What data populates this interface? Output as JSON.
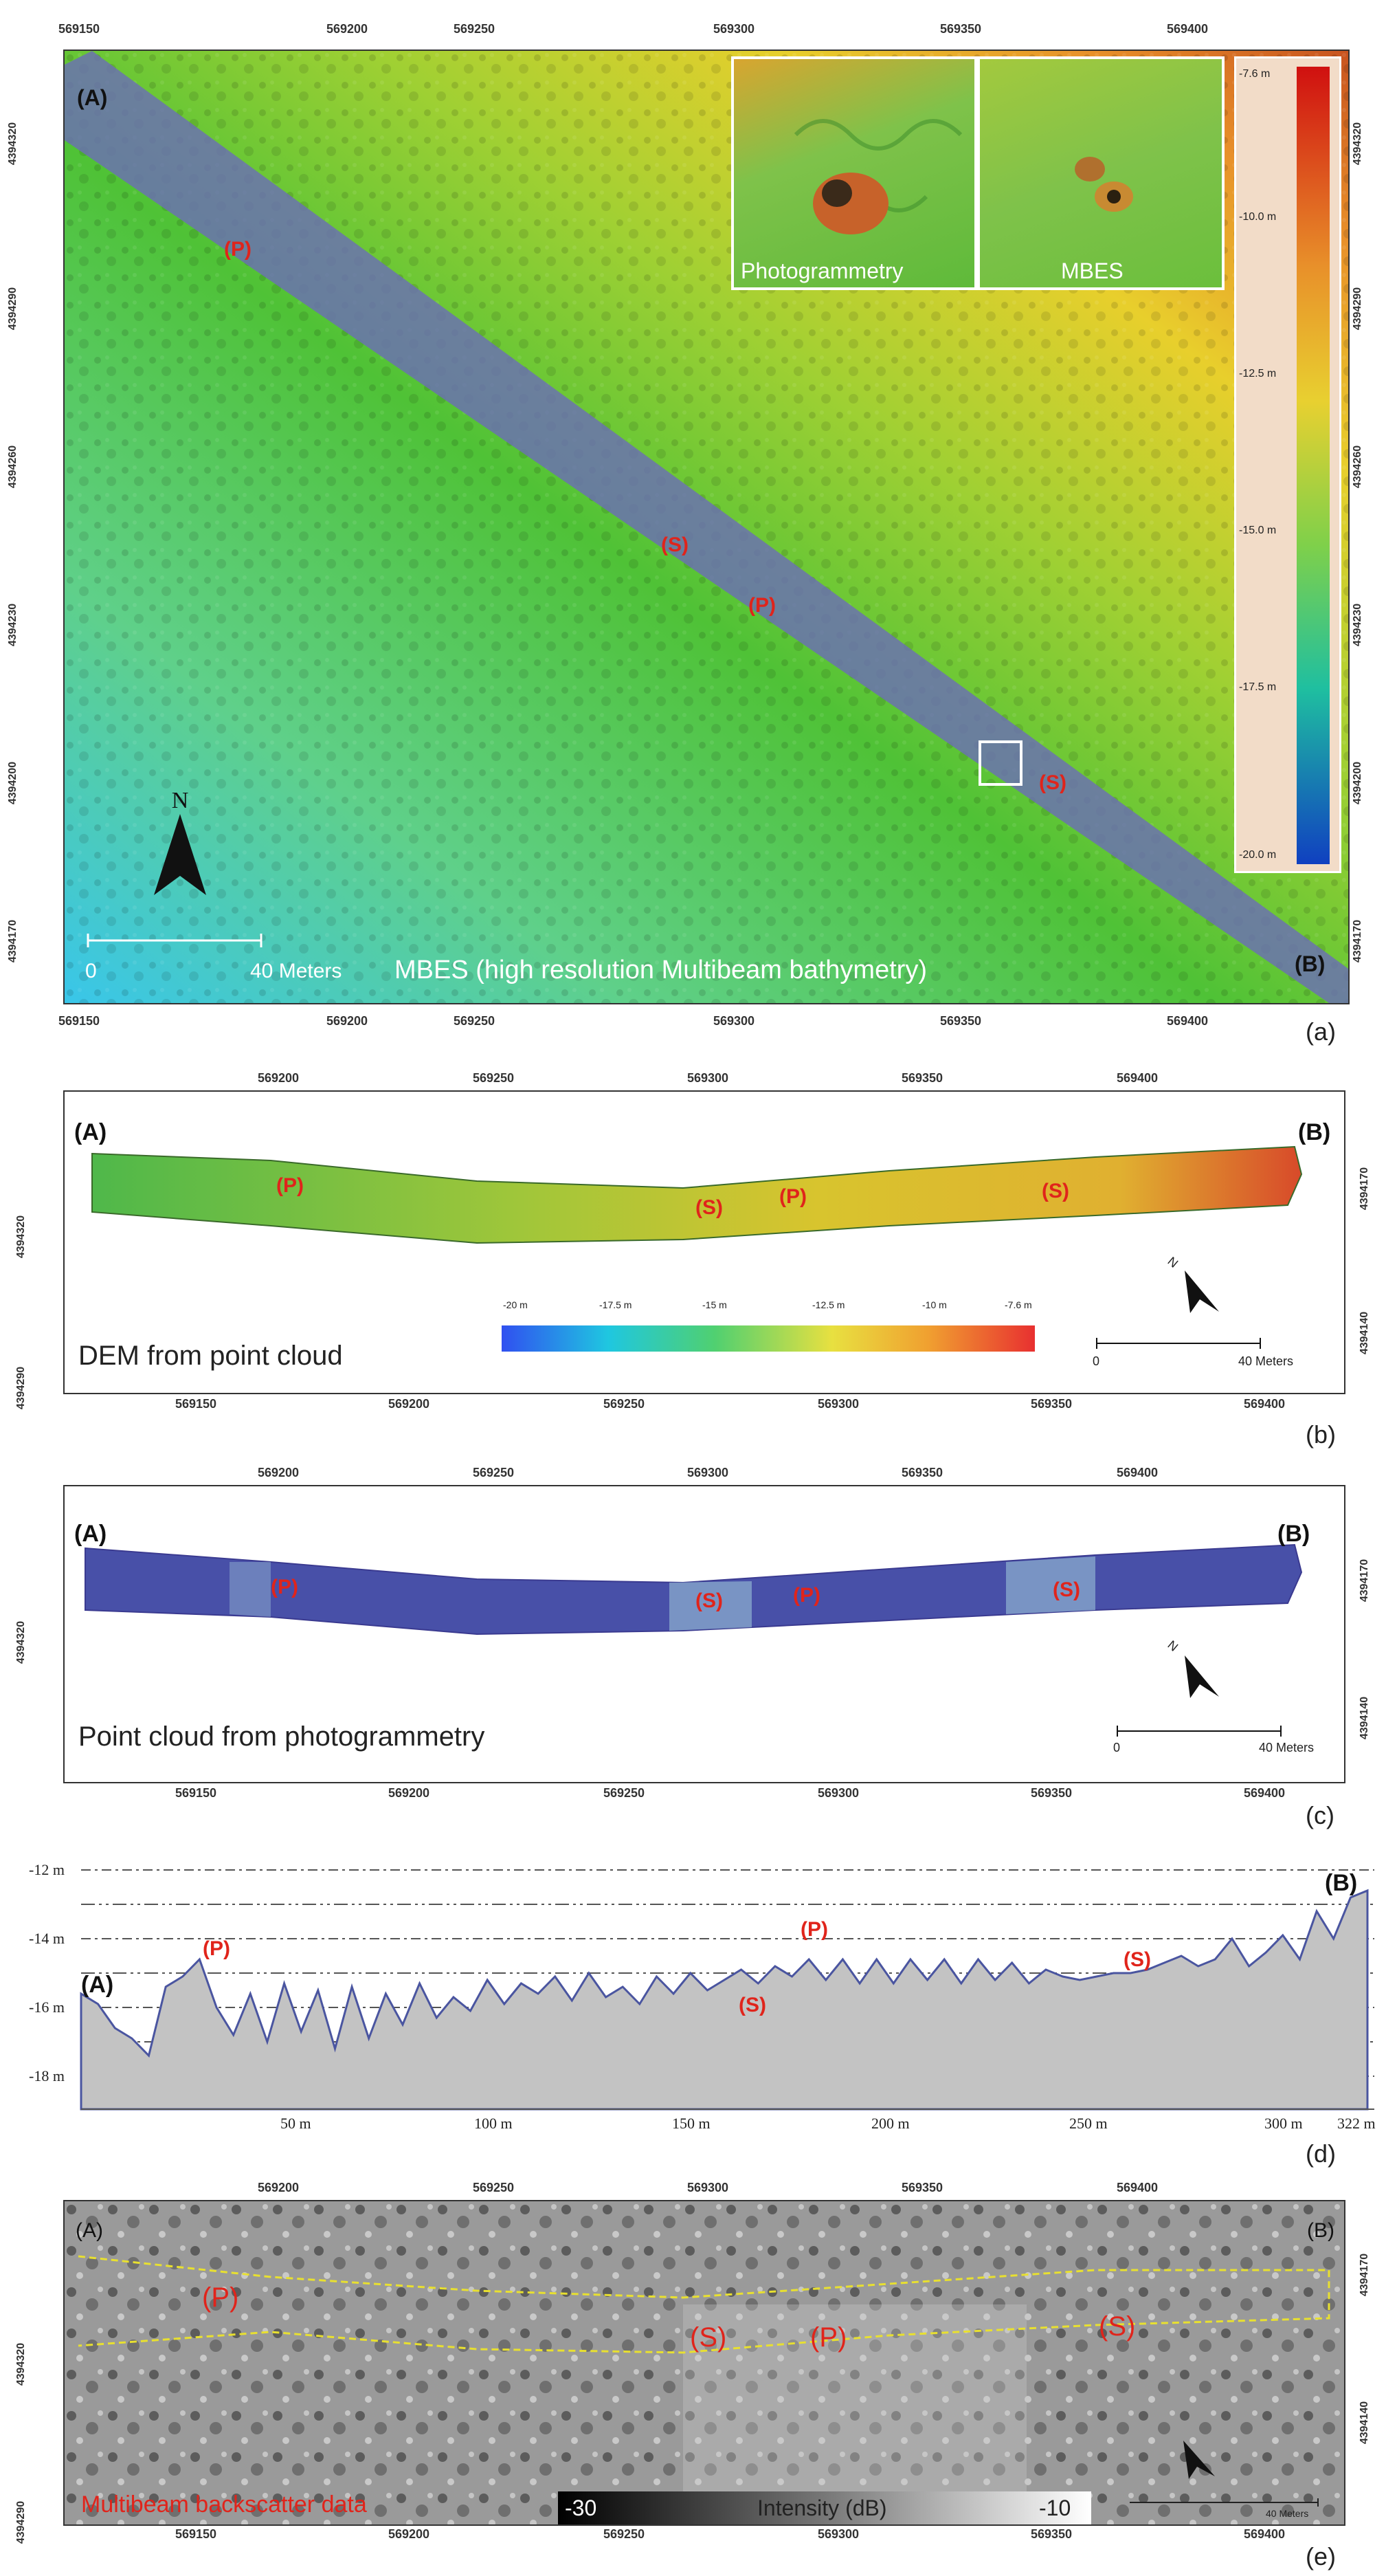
{
  "panel_a": {
    "letter": "(a)",
    "x_ticks": [
      "569150",
      "569200",
      "569250",
      "569300",
      "569350",
      "569400"
    ],
    "y_ticks": [
      "4394320",
      "4394290",
      "4394260",
      "4394230",
      "4394200",
      "4394170"
    ],
    "point_a": "(A)",
    "point_b": "(B)",
    "labels": [
      "(P)",
      "(S)",
      "(P)",
      "(S)"
    ],
    "north": "N",
    "scale_zero": "0",
    "scale_text": "40 Meters",
    "caption": "MBES (high resolution Multibeam bathymetry)",
    "inset_left": "Photogrammetry",
    "inset_right": "MBES",
    "colorbar_ticks": [
      "-7.6 m",
      "-10.0 m",
      "-12.5 m",
      "-15.0 m",
      "-17.5 m",
      "-20.0 m"
    ]
  },
  "panel_b": {
    "letter": "(b)",
    "x_ticks_top": [
      "569200",
      "569250",
      "569300",
      "569350",
      "569400"
    ],
    "x_ticks_bottom": [
      "569150",
      "569200",
      "569250",
      "569300",
      "569350",
      "569400"
    ],
    "y_ticks_right": [
      "4394170",
      "4394140"
    ],
    "y_ticks_left": [
      "4394320",
      "4394290"
    ],
    "point_a": "(A)",
    "point_b": "(B)",
    "labels": [
      "(P)",
      "(S)",
      "(P)",
      "(S)"
    ],
    "caption": "DEM from point cloud",
    "colorbar_ticks": [
      "-20 m",
      "-17.5 m",
      "-15 m",
      "-12.5 m",
      "-10 m",
      "-7.6 m"
    ],
    "north": "N",
    "scale_zero": "0",
    "scale_text": "40 Meters"
  },
  "panel_c": {
    "letter": "(c)",
    "x_ticks_top": [
      "569200",
      "569250",
      "569300",
      "569350",
      "569400"
    ],
    "x_ticks_bottom": [
      "569150",
      "569200",
      "569250",
      "569300",
      "569350",
      "569400"
    ],
    "y_ticks_right": [
      "4394170",
      "4394140"
    ],
    "y_ticks_left": [
      "4394320"
    ],
    "point_a": "(A)",
    "point_b": "(B)",
    "labels": [
      "(P)",
      "(S)",
      "(P)",
      "(S)"
    ],
    "caption": "Point cloud from photogrammetry",
    "north": "N",
    "scale_zero": "0",
    "scale_text": "40 Meters"
  },
  "panel_d": {
    "letter": "(d)",
    "y_ticks": [
      "-12 m",
      "-14 m",
      "-16 m",
      "-18 m"
    ],
    "x_ticks": [
      "50 m",
      "100 m",
      "150 m",
      "200 m",
      "250 m",
      "300 m",
      "322 m"
    ],
    "point_a": "(A)",
    "point_b": "(B)",
    "labels": [
      "(P)",
      "(S)",
      "(P)",
      "(S)"
    ],
    "profile_depths": [
      -15.6,
      -15.9,
      -16.6,
      -16.9,
      -17.4,
      -15.4,
      -15.1,
      -14.6,
      -16.0,
      -16.8,
      -15.6,
      -17.0,
      -15.3,
      -16.7,
      -15.5,
      -17.2,
      -15.4,
      -16.9,
      -15.6,
      -16.5,
      -15.3,
      -16.3,
      -15.7,
      -16.1,
      -15.2,
      -15.9,
      -15.3,
      -15.6,
      -15.1,
      -15.8,
      -15.0,
      -15.7,
      -15.4,
      -15.9,
      -15.1,
      -15.6,
      -15.0,
      -15.5,
      -15.2,
      -14.9,
      -15.3,
      -14.8,
      -15.1,
      -14.6,
      -15.2,
      -14.6,
      -15.3,
      -14.6,
      -15.3,
      -14.6,
      -15.2,
      -14.6,
      -15.3,
      -14.6,
      -15.2,
      -14.7,
      -15.3,
      -14.9,
      -15.1,
      -15.2,
      -15.1,
      -15.0,
      -15.0,
      -14.9,
      -14.7,
      -14.5,
      -14.8,
      -14.6,
      -14.0,
      -14.8,
      -14.4,
      -13.9,
      -14.6,
      -13.2,
      -14.0,
      -12.8,
      -12.6
    ]
  },
  "panel_e": {
    "letter": "(e)",
    "x_ticks_top": [
      "569200",
      "569250",
      "569300",
      "569350",
      "569400"
    ],
    "x_ticks_bottom": [
      "569150",
      "569200",
      "569250",
      "569300",
      "569350",
      "569400"
    ],
    "y_ticks_right": [
      "4394170",
      "4394140"
    ],
    "y_ticks_left": [
      "4394320",
      "4394290"
    ],
    "point_a": "(A)",
    "point_b": "(B)",
    "labels": [
      "(P)",
      "(S)",
      "(P)",
      "(S)"
    ],
    "caption": "Multibeam backscatter data",
    "colorbar_min": "-30",
    "colorbar_title": "Intensity (dB)",
    "colorbar_max": "-10",
    "scale_text": "40 Meters"
  },
  "colors": {
    "label_red": "#e0241b",
    "strip_blue": "#6b6fb5",
    "profile_fill": "#c3c3c3",
    "profile_line": "#4a55a0"
  }
}
